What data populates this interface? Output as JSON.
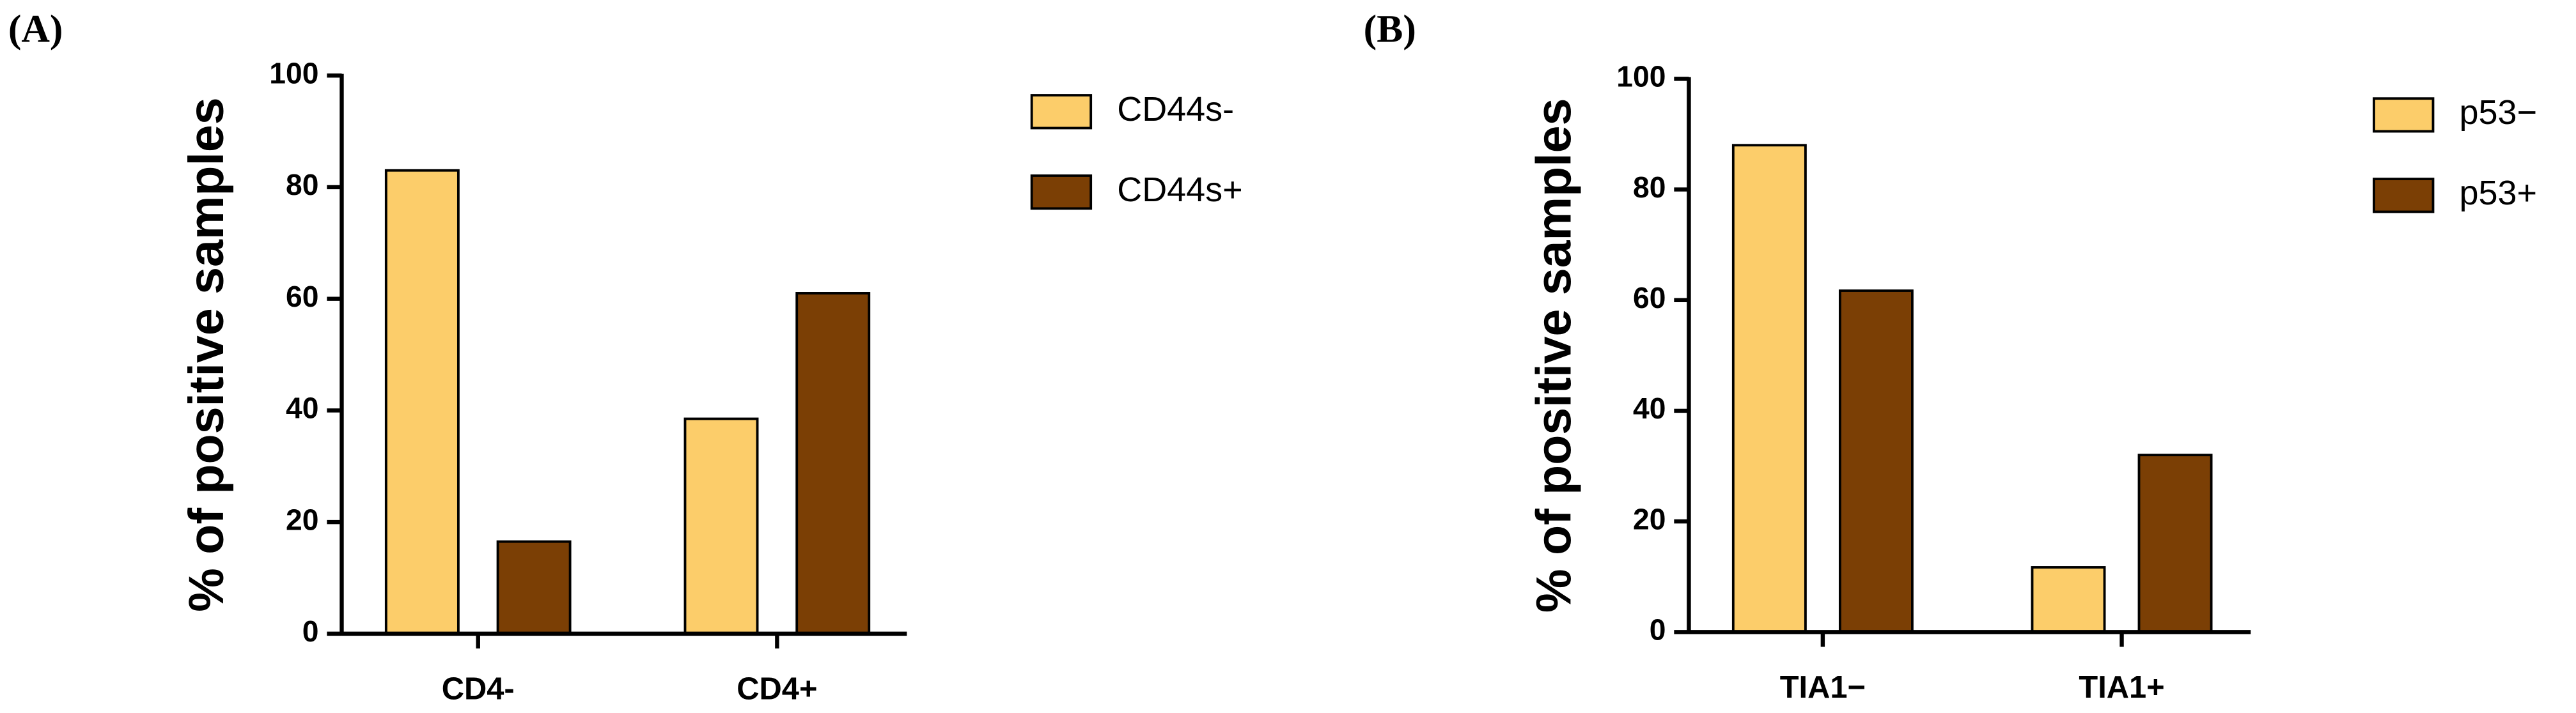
{
  "chart_data": [
    {
      "type": "bar",
      "panel": "(A)",
      "ylabel": "% of positive samples",
      "categories": [
        "CD4-",
        "CD4+"
      ],
      "series": [
        {
          "name": "CD44s-",
          "color": "#fccd6a",
          "values": [
            83,
            38.5
          ]
        },
        {
          "name": "CD44s+",
          "color": "#7b3f05",
          "values": [
            16.5,
            61
          ]
        }
      ],
      "ylim": [
        0,
        100
      ],
      "yticks": [
        0,
        20,
        40,
        60,
        80,
        100
      ]
    },
    {
      "type": "bar",
      "panel": "(B)",
      "ylabel": "% of positive samples",
      "categories": [
        "TIA1−",
        "TIA1+"
      ],
      "series": [
        {
          "name": "p53−",
          "color": "#fccd6a",
          "values": [
            88,
            11.7
          ]
        },
        {
          "name": "p53+",
          "color": "#7b3f05",
          "values": [
            61.7,
            32
          ]
        }
      ],
      "ylim": [
        0,
        100
      ],
      "yticks": [
        0,
        20,
        40,
        60,
        80,
        100
      ]
    }
  ]
}
